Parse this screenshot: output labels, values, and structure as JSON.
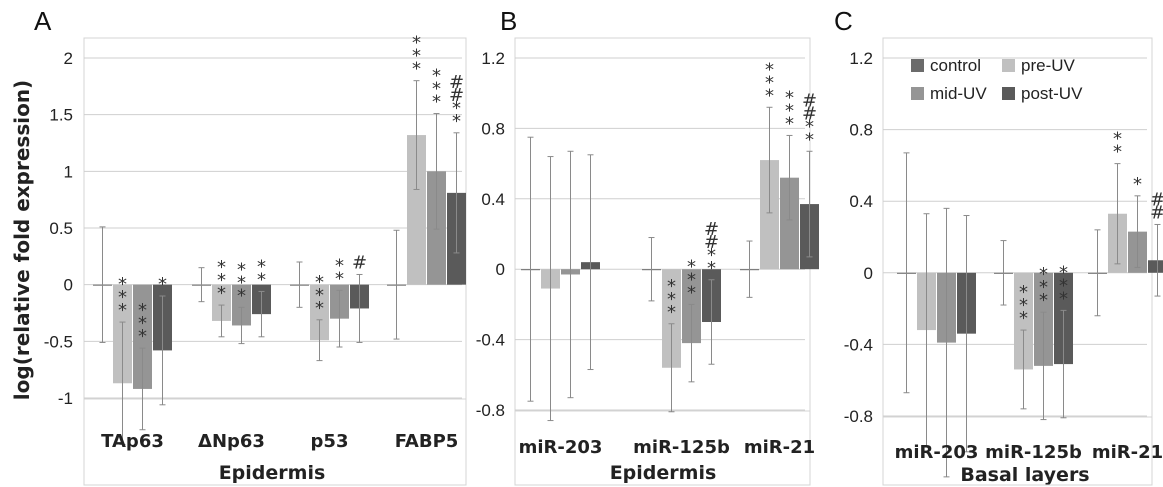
{
  "y_axis_label": "log(relative fold expression)",
  "series_colors": {
    "control": "#6b6b6b",
    "pre-UV": "#c0c0c0",
    "mid-UV": "#959595",
    "post-UV": "#5a5a5a"
  },
  "legend": {
    "series": [
      "control",
      "pre-UV",
      "mid-UV",
      "post-UV"
    ],
    "placement": "top-right of panel C"
  },
  "chart_data": [
    {
      "panel": "A",
      "type": "bar",
      "xlabel": "Epidermis",
      "ylim": [
        -1,
        2
      ],
      "yticks": [
        "-1",
        "-0.5",
        "0",
        "0.5",
        "1",
        "1.5",
        "2"
      ],
      "categories": [
        "TAp63",
        "ΔNp63",
        "p53",
        "FABP5"
      ],
      "series": [
        {
          "name": "control",
          "values": [
            0,
            0,
            0,
            0
          ],
          "error": [
            0.51,
            0.15,
            0.2,
            0.48
          ]
        },
        {
          "name": "pre-UV",
          "values": [
            -0.87,
            -0.32,
            -0.49,
            1.32
          ],
          "error": [
            0.54,
            0.14,
            0.18,
            0.48
          ]
        },
        {
          "name": "mid-UV",
          "values": [
            -0.92,
            -0.36,
            -0.3,
            1.0
          ],
          "error": [
            0.36,
            0.16,
            0.25,
            0.51
          ]
        },
        {
          "name": "post-UV",
          "values": [
            -0.58,
            -0.26,
            -0.21,
            0.81
          ],
          "error": [
            0.48,
            0.2,
            0.3,
            0.53
          ]
        }
      ],
      "annotations": [
        {
          "category": "TAp63",
          "series": "pre-UV",
          "marks": [
            "*",
            "*",
            "*"
          ]
        },
        {
          "category": "TAp63",
          "series": "mid-UV",
          "marks": [
            "*",
            "*",
            "*"
          ]
        },
        {
          "category": "TAp63",
          "series": "post-UV",
          "marks": [
            "*"
          ]
        },
        {
          "category": "ΔNp63",
          "series": "pre-UV",
          "marks": [
            "*",
            "*",
            "*"
          ]
        },
        {
          "category": "ΔNp63",
          "series": "mid-UV",
          "marks": [
            "*",
            "*",
            "*"
          ]
        },
        {
          "category": "ΔNp63",
          "series": "post-UV",
          "marks": [
            "*",
            "*"
          ]
        },
        {
          "category": "p53",
          "series": "pre-UV",
          "marks": [
            "*",
            "*",
            "*"
          ]
        },
        {
          "category": "p53",
          "series": "mid-UV",
          "marks": [
            "*",
            "*"
          ]
        },
        {
          "category": "p53",
          "series": "post-UV",
          "marks": [
            "#"
          ]
        },
        {
          "category": "FABP5",
          "series": "pre-UV",
          "marks": [
            "*",
            "*",
            "*"
          ]
        },
        {
          "category": "FABP5",
          "series": "mid-UV",
          "marks": [
            "*",
            "*",
            "*"
          ]
        },
        {
          "category": "FABP5",
          "series": "post-UV",
          "marks": [
            "#",
            "#",
            "*",
            "*"
          ]
        }
      ]
    },
    {
      "panel": "B",
      "type": "bar",
      "xlabel": "Epidermis",
      "ylim": [
        -0.8,
        1.2
      ],
      "yticks": [
        "-0.8",
        "-0.4",
        "0",
        "0.4",
        "0.8",
        "1.2"
      ],
      "categories": [
        "miR-203",
        "miR-125b",
        "miR-21"
      ],
      "series": [
        {
          "name": "control",
          "values": [
            0,
            0,
            0
          ],
          "error": [
            0.75,
            0.18,
            0.16
          ]
        },
        {
          "name": "pre-UV",
          "values": [
            -0.11,
            -0.56,
            0.62
          ],
          "error": [
            0.75,
            0.25,
            0.3
          ]
        },
        {
          "name": "mid-UV",
          "values": [
            -0.03,
            -0.42,
            0.52
          ],
          "error": [
            0.7,
            0.22,
            0.24
          ]
        },
        {
          "name": "post-UV",
          "values": [
            0.04,
            -0.3,
            0.37
          ],
          "error": [
            0.61,
            0.24,
            0.3
          ]
        }
      ],
      "annotations": [
        {
          "category": "miR-125b",
          "series": "pre-UV",
          "marks": [
            "*",
            "*",
            "*"
          ]
        },
        {
          "category": "miR-125b",
          "series": "mid-UV",
          "marks": [
            "*",
            "*",
            "*"
          ]
        },
        {
          "category": "miR-125b",
          "series": "post-UV",
          "marks": [
            "#",
            "#",
            "*",
            "*"
          ]
        },
        {
          "category": "miR-21",
          "series": "pre-UV",
          "marks": [
            "*",
            "*",
            "*"
          ]
        },
        {
          "category": "miR-21",
          "series": "mid-UV",
          "marks": [
            "*",
            "*",
            "*"
          ]
        },
        {
          "category": "miR-21",
          "series": "post-UV",
          "marks": [
            "#",
            "#",
            "*",
            "*"
          ]
        }
      ]
    },
    {
      "panel": "C",
      "type": "bar",
      "xlabel": "Basal layers",
      "ylim": [
        -0.8,
        1.2
      ],
      "yticks": [
        "-0.8",
        "-0.4",
        "0",
        "0.4",
        "0.8",
        "1.2"
      ],
      "categories": [
        "miR-203",
        "miR-125b",
        "miR-21"
      ],
      "series": [
        {
          "name": "control",
          "values": [
            0,
            0,
            0
          ],
          "error": [
            0.67,
            0.18,
            0.24
          ]
        },
        {
          "name": "pre-UV",
          "values": [
            -0.32,
            -0.54,
            0.33
          ],
          "error": [
            0.65,
            0.22,
            0.28
          ]
        },
        {
          "name": "mid-UV",
          "values": [
            -0.39,
            -0.52,
            0.23
          ],
          "error": [
            0.75,
            0.3,
            0.2
          ]
        },
        {
          "name": "post-UV",
          "values": [
            -0.34,
            -0.51,
            0.07
          ],
          "error": [
            0.66,
            0.3,
            0.2
          ]
        }
      ],
      "annotations": [
        {
          "category": "miR-125b",
          "series": "pre-UV",
          "marks": [
            "*",
            "*",
            "*"
          ]
        },
        {
          "category": "miR-125b",
          "series": "mid-UV",
          "marks": [
            "*",
            "*",
            "*"
          ]
        },
        {
          "category": "miR-125b",
          "series": "post-UV",
          "marks": [
            "*",
            "*",
            "*"
          ]
        },
        {
          "category": "miR-21",
          "series": "pre-UV",
          "marks": [
            "*",
            "*"
          ]
        },
        {
          "category": "miR-21",
          "series": "mid-UV",
          "marks": [
            "*"
          ]
        },
        {
          "category": "miR-21",
          "series": "post-UV",
          "marks": [
            "#",
            "#"
          ]
        }
      ]
    }
  ]
}
